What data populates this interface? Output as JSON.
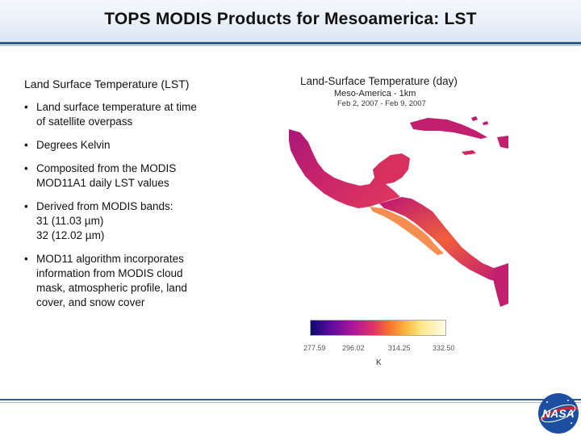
{
  "slide": {
    "title": "TOPS MODIS Products for Mesoamerica: LST"
  },
  "content": {
    "subhead": "Land Surface Temperature (LST)",
    "bullets": [
      {
        "lines": [
          "Land surface temperature at time",
          "of satellite overpass"
        ]
      },
      {
        "lines": [
          "Degrees Kelvin"
        ]
      },
      {
        "lines": [
          "Composited from the MODIS",
          "MOD11A1 daily LST values"
        ]
      },
      {
        "lines": [
          "Derived from MODIS bands:",
          "31 (11.03 µm)",
          "32 (12.02 µm)"
        ]
      },
      {
        "lines": [
          "MOD11 algorithm incorporates",
          "information from MODIS cloud",
          "mask, atmospheric profile, land",
          "cover, and snow cover"
        ]
      }
    ]
  },
  "map": {
    "title": "Land-Surface Temperature (day)",
    "subtitle": "Meso-America - 1km",
    "date_range": "Feb 2, 2007 - Feb 9, 2007",
    "colorbar_ticks": [
      "277.59",
      "296.02",
      "314.25",
      "332.50"
    ],
    "unit": "K",
    "colors": {
      "land_base": "#c2206e",
      "hot": "#f2603a",
      "cool": "#7a148e"
    }
  },
  "logo": {
    "text": "NASA"
  }
}
